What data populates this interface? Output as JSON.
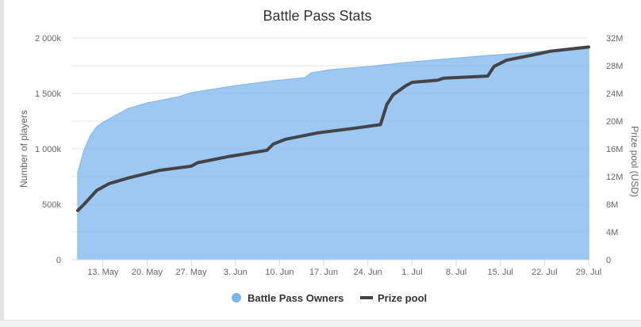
{
  "chart_data": {
    "type": "area+line",
    "title": "Battle Pass Stats",
    "ylabel": "Number of players",
    "y2label": "Prize pool (USD)",
    "ylim": [
      0,
      2000000
    ],
    "y2lim": [
      0,
      32000000
    ],
    "yticks": [
      "0",
      "500k",
      "1 000k",
      "1 500k",
      "2 000k"
    ],
    "y2ticks": [
      "0",
      "4M",
      "8M",
      "12M",
      "16M",
      "20M",
      "24M",
      "28M",
      "32M"
    ],
    "xticks": [
      "13. May",
      "20. May",
      "27. May",
      "3. Jun",
      "10. Jun",
      "17. Jun",
      "24. Jun",
      "1. Jul",
      "8. Jul",
      "15. Jul",
      "22. Jul",
      "29. Jul"
    ],
    "xtick_dates": [
      "2019-05-13",
      "2019-05-20",
      "2019-05-27",
      "2019-06-03",
      "2019-06-10",
      "2019-06-17",
      "2019-06-24",
      "2019-07-01",
      "2019-07-08",
      "2019-07-15",
      "2019-07-22",
      "2019-07-29"
    ],
    "xlim": [
      "2019-05-09",
      "2019-07-29"
    ],
    "grid": true,
    "legend": "bottom",
    "series": [
      {
        "name": "Battle Pass Owners",
        "type": "area",
        "axis": "left",
        "color": "#7cb5ec",
        "points": [
          [
            "2019-05-09",
            786000
          ],
          [
            "2019-05-10",
            990000
          ],
          [
            "2019-05-11",
            1120000
          ],
          [
            "2019-05-12",
            1200000
          ],
          [
            "2019-05-13",
            1240000
          ],
          [
            "2019-05-17",
            1364000
          ],
          [
            "2019-05-20",
            1414000
          ],
          [
            "2019-05-25",
            1471000
          ],
          [
            "2019-05-27",
            1507000
          ],
          [
            "2019-06-03",
            1571000
          ],
          [
            "2019-06-09",
            1614000
          ],
          [
            "2019-06-14",
            1643000
          ],
          [
            "2019-06-15",
            1686000
          ],
          [
            "2019-06-18",
            1714000
          ],
          [
            "2019-06-24",
            1743000
          ],
          [
            "2019-06-30",
            1779000
          ],
          [
            "2019-07-07",
            1814000
          ],
          [
            "2019-07-13",
            1843000
          ],
          [
            "2019-07-20",
            1871000
          ],
          [
            "2019-07-29",
            1929000
          ]
        ]
      },
      {
        "name": "Prize pool",
        "type": "line",
        "axis": "right",
        "color": "#434348",
        "points": [
          [
            "2019-05-09",
            7100000
          ],
          [
            "2019-05-10",
            8000000
          ],
          [
            "2019-05-12",
            10000000
          ],
          [
            "2019-05-14",
            11000000
          ],
          [
            "2019-05-17",
            11800000
          ],
          [
            "2019-05-22",
            12900000
          ],
          [
            "2019-05-27",
            13500000
          ],
          [
            "2019-05-28",
            14000000
          ],
          [
            "2019-06-02",
            14900000
          ],
          [
            "2019-06-08",
            15800000
          ],
          [
            "2019-06-09",
            16700000
          ],
          [
            "2019-06-11",
            17400000
          ],
          [
            "2019-06-16",
            18300000
          ],
          [
            "2019-06-22",
            19000000
          ],
          [
            "2019-06-26",
            19500000
          ],
          [
            "2019-06-27",
            22400000
          ],
          [
            "2019-06-28",
            23800000
          ],
          [
            "2019-06-30",
            25100000
          ],
          [
            "2019-07-01",
            25600000
          ],
          [
            "2019-07-05",
            25900000
          ],
          [
            "2019-07-06",
            26200000
          ],
          [
            "2019-07-13",
            26500000
          ],
          [
            "2019-07-14",
            27900000
          ],
          [
            "2019-07-16",
            28800000
          ],
          [
            "2019-07-21",
            29700000
          ],
          [
            "2019-07-23",
            30100000
          ],
          [
            "2019-07-29",
            30700000
          ]
        ]
      }
    ]
  }
}
